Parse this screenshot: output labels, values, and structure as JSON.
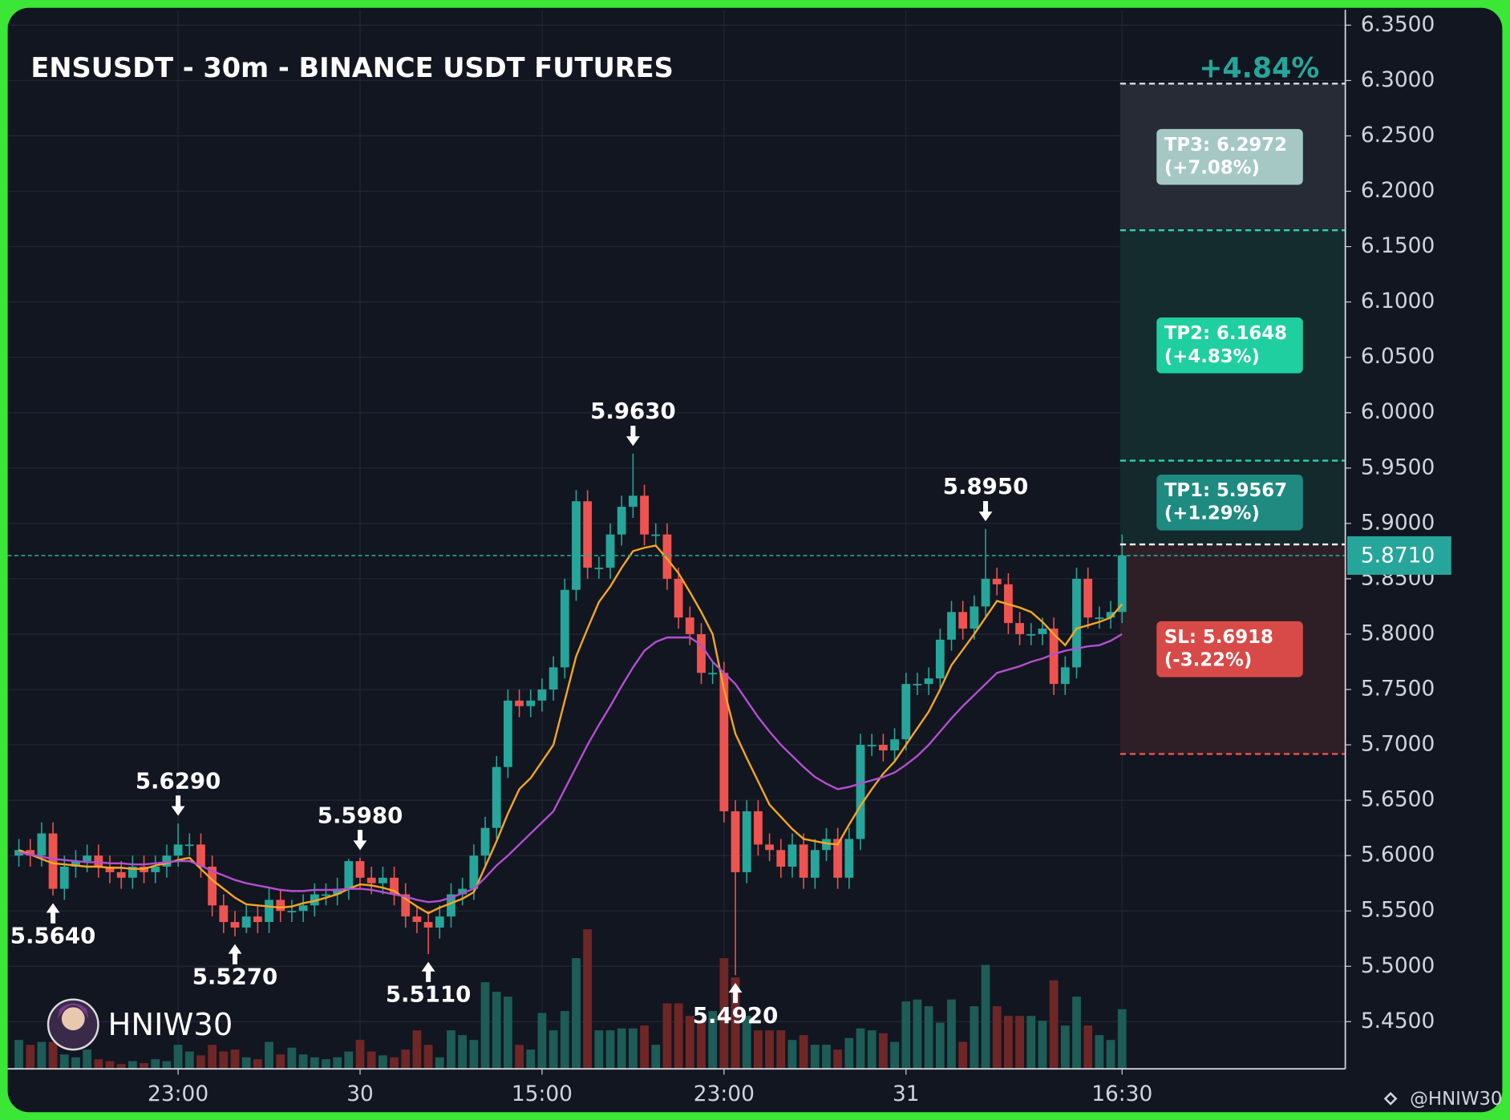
{
  "chart_data": {
    "type": "candlestick",
    "title": "ENSUSDT - 30m - BINANCE USDT FUTURES",
    "change_label": "+4.84%",
    "watermark": "HNIW30",
    "credit": "@HNIW30",
    "categories": [
      null,
      null,
      null,
      null,
      null,
      null,
      null,
      null,
      null,
      null,
      null,
      null,
      null,
      null,
      "23:00",
      null,
      null,
      null,
      null,
      null,
      null,
      null,
      null,
      null,
      null,
      null,
      null,
      null,
      null,
      null,
      "30",
      null,
      null,
      null,
      null,
      null,
      null,
      null,
      null,
      null,
      null,
      null,
      null,
      null,
      null,
      null,
      "15:00",
      null,
      null,
      null,
      null,
      null,
      null,
      null,
      null,
      null,
      null,
      null,
      null,
      null,
      null,
      null,
      "23:00",
      null,
      null,
      null,
      null,
      null,
      null,
      null,
      null,
      null,
      null,
      null,
      null,
      null,
      null,
      null,
      "31",
      null,
      null,
      null,
      null,
      null,
      null,
      null,
      null,
      null,
      null,
      null,
      null,
      null,
      null,
      null,
      null,
      null,
      null,
      "16:30"
    ],
    "open": [
      5.6,
      5.605,
      5.6,
      5.62,
      5.57,
      5.59,
      5.595,
      5.6,
      5.59,
      5.585,
      5.58,
      5.59,
      5.585,
      5.59,
      5.6,
      5.61,
      5.61,
      5.59,
      5.555,
      5.54,
      5.535,
      5.545,
      5.54,
      5.56,
      5.55,
      5.55,
      5.555,
      5.565,
      5.565,
      5.57,
      5.595,
      5.58,
      5.575,
      5.58,
      5.565,
      5.545,
      5.54,
      5.535,
      5.545,
      5.565,
      5.57,
      5.6,
      5.625,
      5.68,
      5.74,
      5.735,
      5.74,
      5.75,
      5.77,
      5.84,
      5.92,
      5.86,
      5.86,
      5.89,
      5.915,
      5.925,
      5.89,
      5.89,
      5.85,
      5.815,
      5.8,
      5.765,
      5.765,
      5.64,
      5.585,
      5.64,
      5.61,
      5.605,
      5.59,
      5.61,
      5.58,
      5.605,
      5.615,
      5.58,
      5.615,
      5.7,
      5.7,
      5.695,
      5.705,
      5.755,
      5.755,
      5.76,
      5.795,
      5.82,
      5.805,
      5.825,
      5.85,
      5.845,
      5.81,
      5.8,
      5.8,
      5.805,
      5.755,
      5.77,
      5.85,
      5.815,
      5.815,
      5.82
    ],
    "high": [
      5.615,
      5.615,
      5.63,
      5.63,
      5.6,
      5.605,
      5.61,
      5.61,
      5.6,
      5.595,
      5.6,
      5.6,
      5.6,
      5.61,
      5.629,
      5.62,
      5.62,
      5.6,
      5.565,
      5.55,
      5.555,
      5.555,
      5.57,
      5.57,
      5.56,
      5.565,
      5.575,
      5.575,
      5.58,
      5.597,
      5.598,
      5.59,
      5.59,
      5.59,
      5.575,
      5.555,
      5.55,
      5.555,
      5.575,
      5.58,
      5.61,
      5.635,
      5.69,
      5.75,
      5.75,
      5.75,
      5.76,
      5.78,
      5.85,
      5.93,
      5.93,
      5.87,
      5.9,
      5.925,
      5.963,
      5.935,
      5.9,
      5.9,
      5.86,
      5.825,
      5.81,
      5.775,
      5.775,
      5.65,
      5.65,
      5.65,
      5.62,
      5.615,
      5.62,
      5.62,
      5.615,
      5.625,
      5.625,
      5.625,
      5.71,
      5.71,
      5.71,
      5.715,
      5.765,
      5.765,
      5.77,
      5.805,
      5.83,
      5.83,
      5.835,
      5.895,
      5.86,
      5.855,
      5.82,
      5.81,
      5.815,
      5.815,
      5.78,
      5.86,
      5.86,
      5.825,
      5.83,
      5.89
    ],
    "low": [
      5.59,
      5.59,
      5.59,
      5.564,
      5.56,
      5.58,
      5.585,
      5.58,
      5.575,
      5.57,
      5.57,
      5.575,
      5.575,
      5.58,
      5.59,
      5.6,
      5.58,
      5.545,
      5.53,
      5.527,
      5.53,
      5.53,
      5.53,
      5.54,
      5.54,
      5.54,
      5.545,
      5.555,
      5.555,
      5.56,
      5.57,
      5.565,
      5.565,
      5.555,
      5.535,
      5.53,
      5.511,
      5.525,
      5.535,
      5.555,
      5.56,
      5.59,
      5.615,
      5.67,
      5.725,
      5.725,
      5.73,
      5.74,
      5.76,
      5.83,
      5.85,
      5.85,
      5.85,
      5.88,
      5.905,
      5.88,
      5.88,
      5.84,
      5.805,
      5.79,
      5.755,
      5.755,
      5.63,
      5.492,
      5.575,
      5.6,
      5.595,
      5.58,
      5.58,
      5.57,
      5.57,
      5.595,
      5.57,
      5.57,
      5.605,
      5.69,
      5.685,
      5.685,
      5.695,
      5.745,
      5.745,
      5.75,
      5.785,
      5.795,
      5.795,
      5.815,
      5.835,
      5.8,
      5.79,
      5.79,
      5.79,
      5.745,
      5.745,
      5.76,
      5.805,
      5.805,
      5.805,
      5.81
    ],
    "close": [
      5.605,
      5.6,
      5.62,
      5.57,
      5.59,
      5.595,
      5.6,
      5.59,
      5.585,
      5.58,
      5.59,
      5.585,
      5.59,
      5.6,
      5.61,
      5.61,
      5.59,
      5.555,
      5.54,
      5.535,
      5.545,
      5.54,
      5.56,
      5.55,
      5.55,
      5.555,
      5.565,
      5.565,
      5.57,
      5.595,
      5.58,
      5.575,
      5.58,
      5.565,
      5.545,
      5.54,
      5.535,
      5.545,
      5.565,
      5.57,
      5.6,
      5.625,
      5.68,
      5.74,
      5.735,
      5.74,
      5.75,
      5.77,
      5.84,
      5.92,
      5.86,
      5.86,
      5.89,
      5.915,
      5.925,
      5.89,
      5.89,
      5.85,
      5.815,
      5.8,
      5.765,
      5.765,
      5.64,
      5.585,
      5.64,
      5.61,
      5.605,
      5.59,
      5.61,
      5.58,
      5.605,
      5.615,
      5.58,
      5.615,
      5.7,
      5.7,
      5.695,
      5.705,
      5.755,
      5.755,
      5.76,
      5.795,
      5.82,
      5.805,
      5.825,
      5.85,
      5.845,
      5.81,
      5.8,
      5.8,
      5.805,
      5.755,
      5.77,
      5.85,
      5.815,
      5.815,
      5.82,
      5.871
    ],
    "volume": [
      30,
      25,
      28,
      28,
      15,
      12,
      20,
      10,
      8,
      5,
      8,
      6,
      10,
      8,
      25,
      18,
      14,
      25,
      18,
      20,
      12,
      10,
      28,
      15,
      22,
      15,
      12,
      10,
      12,
      18,
      30,
      18,
      14,
      12,
      20,
      40,
      25,
      12,
      40,
      35,
      30,
      90,
      80,
      75,
      25,
      20,
      58,
      40,
      60,
      115,
      145,
      40,
      40,
      42,
      42,
      45,
      25,
      68,
      68,
      55,
      50,
      60,
      115,
      95,
      55,
      40,
      40,
      40,
      30,
      35,
      25,
      25,
      20,
      32,
      42,
      40,
      37,
      28,
      70,
      72,
      65,
      48,
      72,
      28,
      65,
      108,
      65,
      55,
      55,
      55,
      50,
      92,
      45,
      75,
      45,
      35,
      30,
      62
    ],
    "ma": [
      {
        "color": "#f5a623",
        "values": [
          5.605,
          5.601,
          5.597,
          5.593,
          5.592,
          5.591,
          5.59,
          5.59,
          5.589,
          5.589,
          5.588,
          5.588,
          5.591,
          5.593,
          5.596,
          5.598,
          5.588,
          5.578,
          5.57,
          5.562,
          5.556,
          5.555,
          5.554,
          5.553,
          5.554,
          5.557,
          5.559,
          5.562,
          5.565,
          5.57,
          5.574,
          5.573,
          5.571,
          5.568,
          5.561,
          5.554,
          5.548,
          5.553,
          5.557,
          5.561,
          5.567,
          5.59,
          5.613,
          5.638,
          5.66,
          5.67,
          5.685,
          5.7,
          5.74,
          5.78,
          5.805,
          5.829,
          5.843,
          5.86,
          5.875,
          5.878,
          5.88,
          5.868,
          5.855,
          5.838,
          5.82,
          5.8,
          5.75,
          5.71,
          5.688,
          5.667,
          5.646,
          5.635,
          5.624,
          5.615,
          5.613,
          5.611,
          5.61,
          5.628,
          5.645,
          5.66,
          5.674,
          5.685,
          5.7,
          5.715,
          5.73,
          5.75,
          5.772,
          5.786,
          5.8,
          5.815,
          5.83,
          5.827,
          5.824,
          5.82,
          5.811,
          5.8,
          5.79,
          5.805,
          5.808,
          5.811,
          5.815,
          5.827
        ]
      },
      {
        "color": "#b44fd1",
        "values": [
          5.603,
          5.601,
          5.599,
          5.597,
          5.596,
          5.595,
          5.594,
          5.594,
          5.593,
          5.593,
          5.592,
          5.592,
          5.593,
          5.594,
          5.595,
          5.595,
          5.591,
          5.586,
          5.582,
          5.578,
          5.575,
          5.573,
          5.571,
          5.569,
          5.568,
          5.568,
          5.569,
          5.569,
          5.569,
          5.57,
          5.57,
          5.569,
          5.567,
          5.565,
          5.563,
          5.56,
          5.558,
          5.559,
          5.562,
          5.566,
          5.57,
          5.58,
          5.591,
          5.6,
          5.61,
          5.62,
          5.63,
          5.64,
          5.66,
          5.68,
          5.7,
          5.718,
          5.735,
          5.753,
          5.77,
          5.785,
          5.793,
          5.797,
          5.797,
          5.797,
          5.79,
          5.775,
          5.765,
          5.755,
          5.74,
          5.725,
          5.712,
          5.7,
          5.69,
          5.68,
          5.671,
          5.665,
          5.66,
          5.662,
          5.665,
          5.668,
          5.671,
          5.675,
          5.682,
          5.69,
          5.7,
          5.712,
          5.724,
          5.735,
          5.745,
          5.755,
          5.765,
          5.768,
          5.771,
          5.775,
          5.778,
          5.782,
          5.785,
          5.787,
          5.789,
          5.79,
          5.794,
          5.8
        ]
      }
    ],
    "up_color": "#26a69a",
    "down_color": "#ef5350",
    "volume_up_color": "#1d5c57",
    "volume_down_color": "#6e2626",
    "ylim": [
      5.4074,
      6.3639
    ],
    "yticks": [
      {
        "value": 5.45,
        "label": "5.4500"
      },
      {
        "value": 5.5,
        "label": "5.5000"
      },
      {
        "value": 5.55,
        "label": "5.5500"
      },
      {
        "value": 5.6,
        "label": "5.6000"
      },
      {
        "value": 5.65,
        "label": "5.6500"
      },
      {
        "value": 5.7,
        "label": "5.7000"
      },
      {
        "value": 5.75,
        "label": "5.7500"
      },
      {
        "value": 5.8,
        "label": "5.8000"
      },
      {
        "value": 5.85,
        "label": "5.8500"
      },
      {
        "value": 5.9,
        "label": "5.9000"
      },
      {
        "value": 5.95,
        "label": "5.9500"
      },
      {
        "value": 6.0,
        "label": "6.0000"
      },
      {
        "value": 6.05,
        "label": "6.0500"
      },
      {
        "value": 6.1,
        "label": "6.1000"
      },
      {
        "value": 6.15,
        "label": "6.1500"
      },
      {
        "value": 6.2,
        "label": "6.2000"
      },
      {
        "value": 6.25,
        "label": "6.2500"
      },
      {
        "value": 6.3,
        "label": "6.3000"
      },
      {
        "value": 6.35,
        "label": "6.3500"
      }
    ],
    "grid": true,
    "last_price": {
      "value": 5.871,
      "label": "5.8710"
    },
    "annotations": [
      {
        "label": "5.6290",
        "value": 5.629,
        "index": 14,
        "side": "above"
      },
      {
        "label": "5.5980",
        "value": 5.598,
        "index": 30,
        "side": "above"
      },
      {
        "label": "5.9630",
        "value": 5.963,
        "index": 54,
        "side": "above"
      },
      {
        "label": "5.8950",
        "value": 5.895,
        "index": 85,
        "side": "above"
      },
      {
        "label": "5.5640",
        "value": 5.564,
        "index": 3,
        "side": "below"
      },
      {
        "label": "5.5270",
        "value": 5.527,
        "index": 19,
        "side": "below"
      },
      {
        "label": "5.5110",
        "value": 5.511,
        "index": 36,
        "side": "below"
      },
      {
        "label": "5.4920",
        "value": 5.492,
        "index": 63,
        "side": "below"
      }
    ],
    "levels": [
      {
        "value": 6.2972,
        "color": "#d7dde6"
      },
      {
        "value": 6.1648,
        "color": "#2bd4b0"
      },
      {
        "value": 5.9567,
        "color": "#2bd4b0"
      },
      {
        "value": 5.881,
        "color": "#ffffff"
      },
      {
        "value": 5.6918,
        "color": "#ef5350"
      }
    ],
    "zones": [
      {
        "fill": "#262b35",
        "box": "#a5c8c5",
        "label": [
          "TP3: 6.2972",
          "(+7.08%)"
        ]
      },
      {
        "fill": "#142c2d",
        "box": "#1fcf9f",
        "label": [
          "TP2: 6.1648",
          "(+4.83%)"
        ]
      },
      {
        "fill": "#13292b",
        "box": "#1f8a80",
        "label": [
          "TP1: 5.9567",
          "(+1.29%)"
        ]
      },
      {
        "fill": "#2e1f26",
        "box": "#d84a47",
        "label": [
          "SL: 5.6918",
          "(-3.22%)"
        ]
      }
    ]
  }
}
